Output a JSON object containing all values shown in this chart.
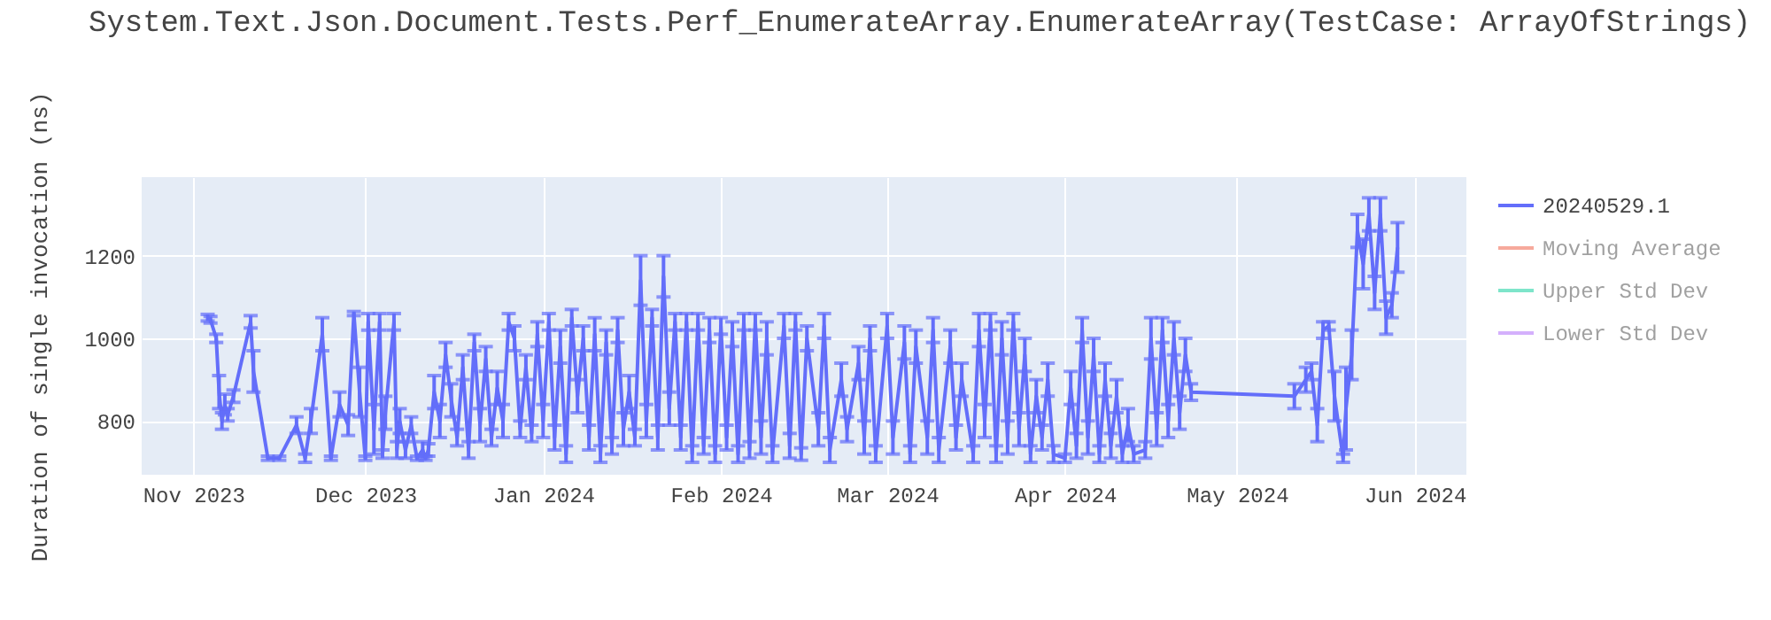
{
  "chart_data": {
    "type": "line",
    "title": "System.Text.Json.Document.Tests.Perf_EnumerateArray.EnumerateArray(TestCase: ArrayOfStrings)",
    "ylabel": "Duration of single invocation (ns)",
    "x": [
      "2023-11-03T12:00",
      "2023-11-04",
      "2023-11-05",
      "2023-11-05T12:00",
      "2023-11-06",
      "2023-11-06T12:00",
      "2023-11-07",
      "2023-11-08",
      "2023-11-11",
      "2023-11-11T12:00",
      "2023-11-14",
      "2023-11-16",
      "2023-11-19",
      "2023-11-20T12:00",
      "2023-11-21T12:00",
      "2023-11-23T12:00",
      "2023-11-25",
      "2023-11-26T12:00",
      "2023-11-28",
      "2023-11-29",
      "2023-11-30",
      "2023-12-01",
      "2023-12-01T12:00",
      "2023-12-02T12:00",
      "2023-12-03T12:00",
      "2023-12-04",
      "2023-12-04T12:00",
      "2023-12-06",
      "2023-12-06T12:00",
      "2023-12-07",
      "2023-12-08",
      "2023-12-09",
      "2023-12-10",
      "2023-12-11",
      "2023-12-11T12:00",
      "2023-12-12",
      "2023-12-13",
      "2023-12-14",
      "2023-12-15",
      "2023-12-16",
      "2023-12-17",
      "2023-12-18",
      "2023-12-19",
      "2023-12-20",
      "2023-12-21",
      "2023-12-22",
      "2023-12-23",
      "2023-12-24",
      "2023-12-25",
      "2023-12-26",
      "2023-12-27",
      "2023-12-28",
      "2023-12-29",
      "2023-12-30",
      "2023-12-31",
      "2024-01-01",
      "2024-01-02",
      "2024-01-03",
      "2024-01-04",
      "2024-01-05",
      "2024-01-06",
      "2024-01-07",
      "2024-01-08",
      "2024-01-09",
      "2024-01-10",
      "2024-01-11",
      "2024-01-12",
      "2024-01-13",
      "2024-01-14",
      "2024-01-15",
      "2024-01-16",
      "2024-01-17",
      "2024-01-18",
      "2024-01-19",
      "2024-01-20",
      "2024-01-21",
      "2024-01-22",
      "2024-01-23",
      "2024-01-24",
      "2024-01-25",
      "2024-01-26",
      "2024-01-27",
      "2024-01-28",
      "2024-01-29",
      "2024-01-30",
      "2024-01-31",
      "2024-02-01",
      "2024-02-02",
      "2024-02-03",
      "2024-02-04",
      "2024-02-05",
      "2024-02-06",
      "2024-02-07",
      "2024-02-08",
      "2024-02-09",
      "2024-02-10",
      "2024-02-12",
      "2024-02-13",
      "2024-02-14",
      "2024-02-15",
      "2024-02-16",
      "2024-02-18",
      "2024-02-19",
      "2024-02-20",
      "2024-02-22",
      "2024-02-23",
      "2024-02-25",
      "2024-02-26",
      "2024-02-27",
      "2024-02-28",
      "2024-03-01",
      "2024-03-02",
      "2024-03-04",
      "2024-03-05",
      "2024-03-06",
      "2024-03-08",
      "2024-03-09",
      "2024-03-10",
      "2024-03-12",
      "2024-03-13",
      "2024-03-14",
      "2024-03-16",
      "2024-03-17",
      "2024-03-18",
      "2024-03-19",
      "2024-03-20",
      "2024-03-21",
      "2024-03-22",
      "2024-03-23",
      "2024-03-24",
      "2024-03-25",
      "2024-03-26",
      "2024-03-27",
      "2024-03-28",
      "2024-03-29",
      "2024-03-30",
      "2024-04-01",
      "2024-04-02",
      "2024-04-03",
      "2024-04-04",
      "2024-04-05",
      "2024-04-06",
      "2024-04-07",
      "2024-04-08",
      "2024-04-09",
      "2024-04-10",
      "2024-04-11",
      "2024-04-12",
      "2024-04-13",
      "2024-04-15",
      "2024-04-16",
      "2024-04-17",
      "2024-04-18",
      "2024-04-19",
      "2024-04-20",
      "2024-04-21",
      "2024-04-22",
      "2024-04-23",
      "2024-05-11",
      "2024-05-13",
      "2024-05-14",
      "2024-05-15",
      "2024-05-16",
      "2024-05-17",
      "2024-05-18",
      "2024-05-19T12:00",
      "2024-05-20",
      "2024-05-21",
      "2024-05-22",
      "2024-05-23",
      "2024-05-24",
      "2024-05-25",
      "2024-05-26",
      "2024-05-27",
      "2024-05-28",
      "2024-05-29"
    ],
    "series": [
      {
        "name": "20240529.1",
        "color": "#636efa",
        "values": [
          1050,
          1045,
          1000,
          870,
          800,
          840,
          815,
          860,
          1040,
          920,
          710,
          710,
          790,
          710,
          800,
          1010,
          710,
          840,
          790,
          1060,
          870,
          710,
          1040,
          780,
          1040,
          720,
          820,
          1040,
          730,
          800,
          730,
          790,
          710,
          730,
          710,
          730,
          870,
          800,
          960,
          850,
          760,
          930,
          730,
          990,
          790,
          950,
          760,
          880,
          800,
          1040,
          1000,
          780,
          930,
          770,
          1010,
          800,
          1040,
          760,
          980,
          720,
          1050,
          860,
          1000,
          760,
          1010,
          720,
          990,
          740,
          1020,
          780,
          870,
          760,
          1140,
          800,
          1050,
          760,
          1150,
          830,
          1040,
          760,
          1040,
          720,
          1040,
          740,
          1020,
          720,
          1030,
          760,
          1010,
          720,
          1040,
          730,
          1040,
          760,
          1000,
          720,
          1030,
          740,
          1040,
          720,
          1000,
          780,
          1030,
          730,
          900,
          780,
          940,
          760,
          1000,
          720,
          1030,
          760,
          990,
          720,
          980,
          760,
          1020,
          730,
          980,
          760,
          900,
          720,
          1020,
          800,
          1040,
          720,
          1000,
          760,
          1040,
          780,
          960,
          720,
          860,
          760,
          900,
          720,
          710,
          880,
          740,
          1020,
          760,
          960,
          720,
          900,
          740,
          860,
          720,
          790,
          720,
          730,
          1000,
          780,
          1020,
          800,
          1000,
          820,
          960,
          870,
          860,
          900,
          920,
          790,
          1020,
          1030,
          860,
          710,
          830,
          960,
          1260,
          1180,
          1300,
          1110,
          1300,
          1050,
          1080,
          1220
        ],
        "errors": [
          8,
          8,
          10,
          40,
          20,
          25,
          15,
          15,
          15,
          50,
          5,
          5,
          20,
          10,
          30,
          40,
          5,
          30,
          25,
          5,
          60,
          5,
          20,
          60,
          20,
          10,
          40,
          20,
          20,
          30,
          20,
          20,
          5,
          20,
          5,
          15,
          40,
          40,
          30,
          40,
          20,
          30,
          20,
          20,
          40,
          30,
          20,
          40,
          40,
          20,
          30,
          20,
          30,
          20,
          30,
          40,
          20,
          30,
          40,
          20,
          20,
          40,
          30,
          30,
          40,
          20,
          30,
          20,
          30,
          40,
          40,
          20,
          60,
          40,
          20,
          30,
          50,
          40,
          20,
          30,
          20,
          20,
          20,
          20,
          30,
          20,
          20,
          30,
          30,
          20,
          20,
          20,
          20,
          40,
          40,
          20,
          30,
          30,
          20,
          15,
          30,
          40,
          30,
          30,
          40,
          30,
          40,
          40,
          30,
          20,
          30,
          40,
          40,
          20,
          40,
          40,
          30,
          30,
          40,
          30,
          40,
          20,
          40,
          40,
          20,
          20,
          40,
          40,
          20,
          40,
          40,
          20,
          40,
          30,
          40,
          20,
          10,
          40,
          30,
          30,
          40,
          40,
          20,
          40,
          30,
          40,
          20,
          40,
          20,
          20,
          50,
          40,
          30,
          40,
          40,
          40,
          40,
          20,
          30,
          30,
          20,
          40,
          20,
          10,
          60,
          10,
          100,
          60,
          40,
          60,
          40,
          40,
          40,
          40,
          30,
          60
        ]
      },
      {
        "name": "Moving Average",
        "color": "#ef553b",
        "values": [
          null,
          null,
          null,
          null,
          null,
          null,
          null,
          null,
          null,
          null,
          null,
          null,
          null,
          null,
          null,
          null,
          null,
          null,
          null,
          null,
          null,
          null,
          null,
          null,
          null,
          null,
          null,
          null,
          null,
          null,
          null,
          null,
          null,
          null,
          null,
          null,
          null,
          null,
          null,
          null,
          null,
          null,
          null,
          null,
          null,
          null,
          null,
          null,
          null,
          null,
          null,
          null,
          null,
          null,
          null,
          null,
          null,
          null,
          null,
          null,
          null,
          null,
          null,
          null,
          null,
          null,
          null,
          null,
          null,
          null,
          null,
          null,
          null,
          null,
          null,
          null,
          null,
          null,
          null,
          null,
          null,
          null,
          null,
          null,
          null,
          null,
          null,
          null,
          null,
          null,
          null,
          null,
          null,
          null,
          null,
          null,
          null,
          null,
          null,
          null,
          null,
          null,
          null,
          null,
          null,
          null,
          null,
          null,
          null,
          null,
          null,
          null,
          null,
          null,
          null,
          null,
          null,
          null,
          null,
          null,
          null,
          null,
          null,
          null,
          null,
          null,
          null,
          null,
          null,
          null,
          null,
          null,
          null,
          null,
          null,
          null,
          null,
          null,
          null,
          null,
          null,
          null,
          null,
          null,
          null,
          null,
          null,
          null,
          null,
          null,
          null,
          null,
          null,
          null,
          null,
          null,
          null,
          null,
          null,
          null,
          null,
          null,
          null,
          null,
          null,
          null,
          null,
          null,
          null,
          null,
          null,
          null,
          null,
          null,
          null,
          null
        ]
      },
      {
        "name": "Upper Std Dev",
        "color": "#00cc96",
        "values": [
          null,
          null,
          null,
          null,
          null,
          null,
          null,
          null,
          null,
          null,
          null,
          null,
          null,
          null,
          null,
          null,
          null,
          null,
          null,
          null,
          null,
          null,
          null,
          null,
          null,
          null,
          null,
          null,
          null,
          null,
          null,
          null,
          null,
          null,
          null,
          null,
          null,
          null,
          null,
          null,
          null,
          null,
          null,
          null,
          null,
          null,
          null,
          null,
          null,
          null,
          null,
          null,
          null,
          null,
          null,
          null,
          null,
          null,
          null,
          null,
          null,
          null,
          null,
          null,
          null,
          null,
          null,
          null,
          null,
          null,
          null,
          null,
          null,
          null,
          null,
          null,
          null,
          null,
          null,
          null,
          null,
          null,
          null,
          null,
          null,
          null,
          null,
          null,
          null,
          null,
          null,
          null,
          null,
          null,
          null,
          null,
          null,
          null,
          null,
          null,
          null,
          null,
          null,
          null,
          null,
          null,
          null,
          null,
          null,
          null,
          null,
          null,
          null,
          null,
          null,
          null,
          null,
          null,
          null,
          null,
          null,
          null,
          null,
          null,
          null,
          null,
          null,
          null,
          null,
          null,
          null,
          null,
          null,
          null,
          null,
          null,
          null,
          null,
          null,
          null,
          null,
          null,
          null,
          null,
          null,
          null,
          null,
          null,
          null,
          null,
          null,
          null,
          null,
          null,
          null,
          null,
          null,
          null,
          null,
          null,
          null,
          null,
          null,
          null,
          null,
          null,
          null,
          null,
          null,
          null,
          null,
          null,
          null,
          null,
          null,
          null
        ]
      },
      {
        "name": "Lower Std Dev",
        "color": "#ab63fa",
        "values": [
          null,
          null,
          null,
          null,
          null,
          null,
          null,
          null,
          null,
          null,
          null,
          null,
          null,
          null,
          null,
          null,
          null,
          null,
          null,
          null,
          null,
          null,
          null,
          null,
          null,
          null,
          null,
          null,
          null,
          null,
          null,
          null,
          null,
          null,
          null,
          null,
          null,
          null,
          null,
          null,
          null,
          null,
          null,
          null,
          null,
          null,
          null,
          null,
          null,
          null,
          null,
          null,
          null,
          null,
          null,
          null,
          null,
          null,
          null,
          null,
          null,
          null,
          null,
          null,
          null,
          null,
          null,
          null,
          null,
          null,
          null,
          null,
          null,
          null,
          null,
          null,
          null,
          null,
          null,
          null,
          null,
          null,
          null,
          null,
          null,
          null,
          null,
          null,
          null,
          null,
          null,
          null,
          null,
          null,
          null,
          null,
          null,
          null,
          null,
          null,
          null,
          null,
          null,
          null,
          null,
          null,
          null,
          null,
          null,
          null,
          null,
          null,
          null,
          null,
          null,
          null,
          null,
          null,
          null,
          null,
          null,
          null,
          null,
          null,
          null,
          null,
          null,
          null,
          null,
          null,
          null,
          null,
          null,
          null,
          null,
          null,
          null,
          null,
          null,
          null,
          null,
          null,
          null,
          null,
          null,
          null,
          null,
          null,
          null,
          null,
          null,
          null,
          null,
          null,
          null,
          null,
          null,
          null,
          null,
          null,
          null,
          null,
          null,
          null,
          null,
          null,
          null,
          null,
          null,
          null,
          null,
          null,
          null,
          null,
          null,
          null
        ]
      }
    ],
    "xlim": [
      "2023-10-23",
      "2024-06-10"
    ],
    "xticks": [
      {
        "value": "2023-11-01",
        "label": "Nov 2023"
      },
      {
        "value": "2023-12-01",
        "label": "Dec 2023"
      },
      {
        "value": "2024-01-01",
        "label": "Jan 2024"
      },
      {
        "value": "2024-02-01",
        "label": "Feb 2024"
      },
      {
        "value": "2024-03-01",
        "label": "Mar 2024"
      },
      {
        "value": "2024-04-01",
        "label": "Apr 2024"
      },
      {
        "value": "2024-05-01",
        "label": "May 2024"
      },
      {
        "value": "2024-06-01",
        "label": "Jun 2024"
      }
    ],
    "ylim": [
      670,
      1390
    ],
    "yticks": [
      800,
      1000,
      1200
    ],
    "grid": true,
    "legend": "top right",
    "line_style": "solid"
  }
}
